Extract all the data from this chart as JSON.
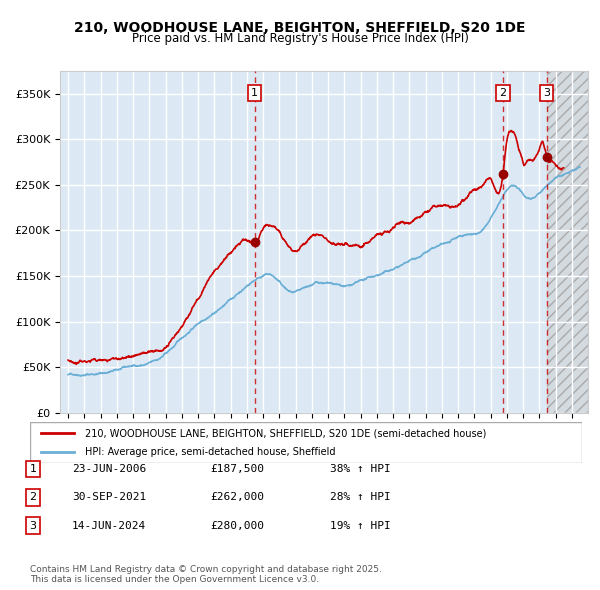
{
  "title": "210, WOODHOUSE LANE, BEIGHTON, SHEFFIELD, S20 1DE",
  "subtitle": "Price paid vs. HM Land Registry's House Price Index (HPI)",
  "legend_line1": "210, WOODHOUSE LANE, BEIGHTON, SHEFFIELD, S20 1DE (semi-detached house)",
  "legend_line2": "HPI: Average price, semi-detached house, Sheffield",
  "footer": "Contains HM Land Registry data © Crown copyright and database right 2025.\nThis data is licensed under the Open Government Licence v3.0.",
  "sale_color": "#cc0000",
  "hpi_color": "#6baed6",
  "background_chart": "#dce9f5",
  "background_future": "#e8e8e8",
  "grid_color": "#ffffff",
  "yticks": [
    0,
    50000,
    100000,
    150000,
    200000,
    250000,
    300000,
    350000
  ],
  "ylabels": [
    "£0",
    "£50K",
    "£100K",
    "£150K",
    "£200K",
    "£250K",
    "£300K",
    "£350K"
  ],
  "ylim": [
    0,
    375000
  ],
  "sale_events": [
    {
      "date": "2006-06-23",
      "price": 187500,
      "label": "1",
      "pct": 38
    },
    {
      "date": "2021-09-30",
      "price": 262000,
      "label": "2",
      "pct": 28
    },
    {
      "date": "2024-06-14",
      "price": 280000,
      "label": "3",
      "pct": 19
    }
  ],
  "table_rows": [
    [
      "1",
      "23-JUN-2006",
      "£187,500",
      "38% ↑ HPI"
    ],
    [
      "2",
      "30-SEP-2021",
      "£262,000",
      "28% ↑ HPI"
    ],
    [
      "3",
      "14-JUN-2024",
      "£280,000",
      "19% ↑ HPI"
    ]
  ]
}
